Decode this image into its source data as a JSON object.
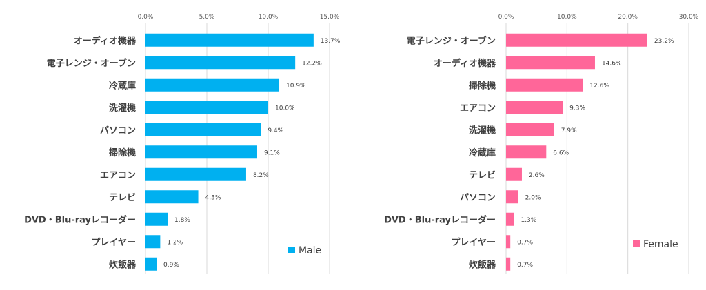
{
  "chart_data": [
    {
      "type": "bar",
      "orientation": "horizontal",
      "categories": [
        "オーディオ機器",
        "電子レンジ・オーブン",
        "冷蔵庫",
        "洗濯機",
        "パソコン",
        "掃除機",
        "エアコン",
        "テレビ",
        "DVD・Blu-rayレコーダー",
        "プレイヤー",
        "炊飯器"
      ],
      "series": [
        {
          "name": "Male",
          "values": [
            13.7,
            12.2,
            10.9,
            10.0,
            9.4,
            9.1,
            8.2,
            4.3,
            1.8,
            1.2,
            0.9
          ]
        }
      ],
      "data_labels": [
        "13.7%",
        "12.2%",
        "10.9%",
        "10.0%",
        "9.4%",
        "9.1%",
        "8.2%",
        "4.3%",
        "1.8%",
        "1.2%",
        "0.9%"
      ],
      "xlim": [
        0,
        15
      ],
      "ticks": [
        0,
        5,
        10,
        15
      ],
      "tick_labels": [
        "0.0%",
        "5.0%",
        "10.0%",
        "15.0%"
      ],
      "axis_position": "top",
      "grid": true,
      "legend": "bottom-right",
      "color": "#00b0f0"
    },
    {
      "type": "bar",
      "orientation": "horizontal",
      "categories": [
        "電子レンジ・オーブン",
        "オーディオ機器",
        "掃除機",
        "エアコン",
        "洗濯機",
        "冷蔵庫",
        "テレビ",
        "パソコン",
        "DVD・Blu-rayレコーダー",
        "プレイヤー",
        "炊飯器"
      ],
      "series": [
        {
          "name": "Female",
          "values": [
            23.2,
            14.6,
            12.6,
            9.3,
            7.9,
            6.6,
            2.6,
            2.0,
            1.3,
            0.7,
            0.7
          ]
        }
      ],
      "data_labels": [
        "23.2%",
        "14.6%",
        "12.6%",
        "9.3%",
        "7.9%",
        "6.6%",
        "2.6%",
        "2.0%",
        "1.3%",
        "0.7%",
        "0.7%"
      ],
      "xlim": [
        0,
        30
      ],
      "ticks": [
        0,
        10,
        20,
        30
      ],
      "tick_labels": [
        "0.0%",
        "10.0%",
        "20.0%",
        "30.0%"
      ],
      "axis_position": "top",
      "grid": true,
      "legend": "bottom-right",
      "color": "#ff6699"
    }
  ]
}
